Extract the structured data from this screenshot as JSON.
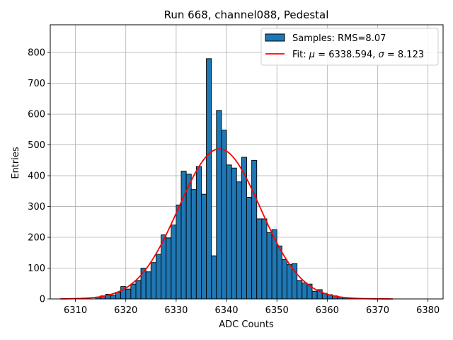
{
  "chart_data": {
    "type": "bar",
    "title": "Run 668, channel088, Pedestal",
    "xlabel": "ADC Counts",
    "ylabel": "Entries",
    "xlim": [
      6305,
      6383
    ],
    "ylim": [
      0,
      890
    ],
    "xticks": [
      6310,
      6320,
      6330,
      6340,
      6350,
      6360,
      6370,
      6380
    ],
    "yticks": [
      0,
      100,
      200,
      300,
      400,
      500,
      600,
      700,
      800
    ],
    "grid": true,
    "legend_position": "top-right",
    "histogram": {
      "name": "Samples: RMS=8.07",
      "color": "#1f77b4",
      "edgecolor": "#000000",
      "bin_width": 1,
      "bin_starts": [
        6314,
        6315,
        6316,
        6317,
        6318,
        6319,
        6320,
        6321,
        6322,
        6323,
        6324,
        6325,
        6326,
        6327,
        6328,
        6329,
        6330,
        6331,
        6332,
        6333,
        6334,
        6335,
        6336,
        6337,
        6338,
        6339,
        6340,
        6341,
        6342,
        6343,
        6344,
        6345,
        6346,
        6347,
        6348,
        6349,
        6350,
        6351,
        6352,
        6353,
        6354,
        6355,
        6356,
        6357,
        6358,
        6359,
        6360,
        6361,
        6362,
        6363,
        6364,
        6365,
        6366
      ],
      "counts": [
        6,
        10,
        15,
        12,
        22,
        40,
        32,
        48,
        60,
        100,
        88,
        118,
        145,
        208,
        198,
        240,
        305,
        415,
        405,
        355,
        430,
        340,
        780,
        140,
        612,
        548,
        435,
        425,
        380,
        460,
        330,
        450,
        260,
        260,
        215,
        225,
        172,
        128,
        112,
        115,
        60,
        52,
        48,
        25,
        30,
        18,
        14,
        10,
        6,
        4,
        3,
        2,
        1
      ]
    },
    "fit": {
      "label_prefix": "Fit: ",
      "label_mu_symbol": "μ",
      "label_mu_value": " = 6338.594, ",
      "label_sigma_symbol": "σ",
      "label_sigma_value": " = 8.123",
      "mu": 6338.594,
      "sigma": 8.123,
      "amplitude": 487,
      "x_range": [
        6307,
        6373
      ],
      "color": "#ff0000"
    }
  }
}
